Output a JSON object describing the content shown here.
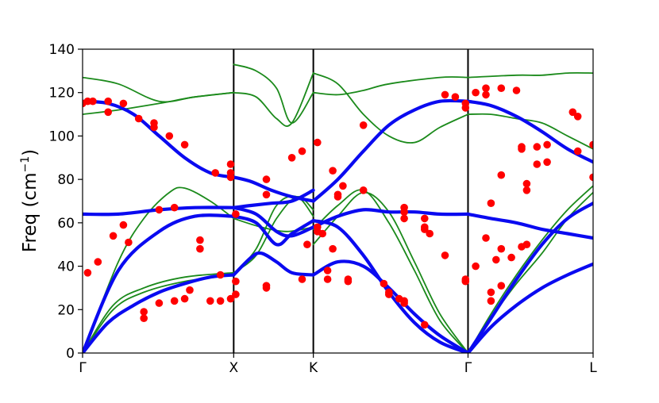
{
  "chart_data": {
    "type": "line",
    "title": "",
    "xlabel": "",
    "ylabel": "Freq (cm",
    "ylabel_sup": "−1",
    "ylabel_close": ")",
    "ylim": [
      0,
      140
    ],
    "yticks": [
      0,
      20,
      40,
      60,
      80,
      100,
      120,
      140
    ],
    "xlim": [
      0,
      1
    ],
    "high_symmetry_points": [
      {
        "label": "Γ",
        "x": 0.0
      },
      {
        "label": "X",
        "x": 0.296
      },
      {
        "label": "K",
        "x": 0.452
      },
      {
        "label": "Γ",
        "x": 0.755
      },
      {
        "label": "L",
        "x": 1.0
      }
    ],
    "grid": false,
    "legend": "none",
    "colors": {
      "green": "#1b8a1b",
      "blue": "#0a0af0",
      "points": "#ff0000"
    },
    "series": [
      {
        "group": "green",
        "x": [
          0.0,
          0.06,
          0.12,
          0.2,
          0.296
        ],
        "values": [
          0,
          20,
          28,
          33,
          36
        ]
      },
      {
        "group": "green",
        "x": [
          0.0,
          0.06,
          0.12,
          0.2,
          0.296
        ],
        "values": [
          0,
          22,
          30,
          35,
          37
        ]
      },
      {
        "group": "green",
        "x": [
          0.0,
          0.07,
          0.12,
          0.17,
          0.2,
          0.25,
          0.296
        ],
        "values": [
          0,
          42,
          62,
          74,
          76,
          70,
          62
        ]
      },
      {
        "group": "green",
        "x": [
          0.296,
          0.35,
          0.4,
          0.452
        ],
        "values": [
          62,
          58,
          56,
          58
        ]
      },
      {
        "group": "green",
        "x": [
          0.296,
          0.34,
          0.38,
          0.42,
          0.452
        ],
        "values": [
          37,
          45,
          62,
          72,
          66
        ]
      },
      {
        "group": "green",
        "x": [
          0.296,
          0.34,
          0.38,
          0.42,
          0.452
        ],
        "values": [
          36,
          48,
          68,
          72,
          63
        ]
      },
      {
        "group": "green",
        "x": [
          0.452,
          0.5,
          0.55,
          0.6,
          0.65,
          0.7,
          0.755
        ],
        "values": [
          50,
          63,
          74,
          65,
          42,
          18,
          0
        ]
      },
      {
        "group": "green",
        "x": [
          0.452,
          0.5,
          0.55,
          0.6,
          0.65,
          0.7,
          0.755
        ],
        "values": [
          57,
          68,
          75,
          60,
          38,
          15,
          0
        ]
      },
      {
        "group": "green",
        "x": [
          0.755,
          0.8,
          0.85,
          0.9,
          0.95,
          1.0
        ],
        "values": [
          0,
          18,
          36,
          52,
          66,
          77
        ]
      },
      {
        "group": "green",
        "x": [
          0.755,
          0.8,
          0.85,
          0.9,
          0.95,
          1.0
        ],
        "values": [
          0,
          16,
          32,
          46,
          62,
          74
        ]
      },
      {
        "group": "green",
        "x": [
          0.0,
          0.07,
          0.15,
          0.22,
          0.296
        ],
        "values": [
          127,
          124,
          116,
          118,
          120
        ]
      },
      {
        "group": "green",
        "x": [
          0.0,
          0.07,
          0.15,
          0.22,
          0.296
        ],
        "values": [
          110,
          112,
          115,
          118,
          120
        ]
      },
      {
        "group": "green",
        "x": [
          0.296,
          0.34,
          0.38,
          0.41,
          0.452
        ],
        "values": [
          133,
          130,
          122,
          106,
          120
        ]
      },
      {
        "group": "green",
        "x": [
          0.296,
          0.34,
          0.38,
          0.41,
          0.452
        ],
        "values": [
          120,
          118,
          108,
          106,
          129
        ]
      },
      {
        "group": "green",
        "x": [
          0.452,
          0.5,
          0.55,
          0.6,
          0.7,
          0.755
        ],
        "values": [
          120,
          119,
          121,
          124,
          127,
          127
        ]
      },
      {
        "group": "green",
        "x": [
          0.452,
          0.5,
          0.55,
          0.6,
          0.65,
          0.7,
          0.755
        ],
        "values": [
          129,
          124,
          110,
          100,
          97,
          104,
          110
        ]
      },
      {
        "group": "green",
        "x": [
          0.755,
          0.85,
          0.9,
          0.95,
          1.0
        ],
        "values": [
          127,
          128,
          128,
          129,
          129
        ]
      },
      {
        "group": "green",
        "x": [
          0.755,
          0.8,
          0.85,
          0.9,
          0.95,
          1.0
        ],
        "values": [
          110,
          110,
          108,
          106,
          100,
          94
        ]
      },
      {
        "group": "blue",
        "x": [
          0.0,
          0.05,
          0.1,
          0.15,
          0.2,
          0.25,
          0.296
        ],
        "values": [
          0,
          14,
          22,
          28,
          32,
          35,
          36
        ]
      },
      {
        "group": "blue",
        "x": [
          0.296,
          0.33,
          0.35,
          0.38,
          0.41,
          0.452
        ],
        "values": [
          36,
          44,
          46,
          42,
          37,
          36
        ]
      },
      {
        "group": "blue",
        "x": [
          0.452,
          0.5,
          0.55,
          0.6,
          0.65,
          0.7,
          0.755
        ],
        "values": [
          36,
          42,
          40,
          30,
          18,
          8,
          0
        ]
      },
      {
        "group": "blue",
        "x": [
          0.755,
          0.8,
          0.85,
          0.9,
          0.95,
          1.0
        ],
        "values": [
          0,
          12,
          22,
          30,
          36,
          41
        ]
      },
      {
        "group": "blue",
        "x": [
          0.0,
          0.07,
          0.15,
          0.22,
          0.296
        ],
        "values": [
          0,
          38,
          56,
          63,
          63
        ]
      },
      {
        "group": "blue",
        "x": [
          0.296,
          0.34,
          0.38,
          0.41,
          0.452
        ],
        "values": [
          63,
          60,
          50,
          55,
          61
        ]
      },
      {
        "group": "blue",
        "x": [
          0.452,
          0.5,
          0.55,
          0.6,
          0.65,
          0.7,
          0.755
        ],
        "values": [
          61,
          58,
          45,
          28,
          14,
          5,
          0
        ]
      },
      {
        "group": "blue",
        "x": [
          0.755,
          0.8,
          0.85,
          0.9,
          0.95,
          1.0
        ],
        "values": [
          0,
          16,
          34,
          50,
          62,
          69
        ]
      },
      {
        "group": "blue",
        "x": [
          0.0,
          0.07,
          0.15,
          0.22,
          0.296
        ],
        "values": [
          64,
          64,
          66,
          67,
          67
        ]
      },
      {
        "group": "blue",
        "x": [
          0.296,
          0.34,
          0.38,
          0.41,
          0.452
        ],
        "values": [
          67,
          64,
          56,
          54,
          58
        ]
      },
      {
        "group": "blue",
        "x": [
          0.452,
          0.5,
          0.55,
          0.6,
          0.65,
          0.7,
          0.755
        ],
        "values": [
          58,
          63,
          66,
          65,
          65,
          64,
          64
        ]
      },
      {
        "group": "blue",
        "x": [
          0.755,
          0.8,
          0.85,
          0.9,
          0.95,
          1.0
        ],
        "values": [
          64,
          62,
          60,
          57,
          55,
          53
        ]
      },
      {
        "group": "blue",
        "x": [
          0.296,
          0.33,
          0.37,
          0.41,
          0.452
        ],
        "values": [
          67,
          68,
          69,
          70,
          75
        ]
      },
      {
        "group": "blue",
        "x": [
          0.0,
          0.05,
          0.1,
          0.15,
          0.2,
          0.25,
          0.296
        ],
        "values": [
          116,
          115,
          110,
          100,
          90,
          83,
          81
        ]
      },
      {
        "group": "blue",
        "x": [
          0.296,
          0.33,
          0.37,
          0.41,
          0.452
        ],
        "values": [
          81,
          79,
          75,
          72,
          70
        ]
      },
      {
        "group": "blue",
        "x": [
          0.452,
          0.5,
          0.55,
          0.6,
          0.65,
          0.7,
          0.755
        ],
        "values": [
          70,
          80,
          93,
          105,
          112,
          116,
          116
        ]
      },
      {
        "group": "blue",
        "x": [
          0.755,
          0.8,
          0.85,
          0.9,
          0.95,
          1.0
        ],
        "values": [
          116,
          114,
          109,
          102,
          94,
          88
        ]
      }
    ],
    "points": [
      [
        0.0,
        115
      ],
      [
        0.01,
        116
      ],
      [
        0.02,
        116
      ],
      [
        0.05,
        116
      ],
      [
        0.08,
        115
      ],
      [
        0.05,
        111
      ],
      [
        0.11,
        108
      ],
      [
        0.14,
        104
      ],
      [
        0.14,
        106
      ],
      [
        0.17,
        100
      ],
      [
        0.2,
        96
      ],
      [
        0.26,
        83
      ],
      [
        0.29,
        83
      ],
      [
        0.29,
        81
      ],
      [
        0.29,
        87
      ],
      [
        0.36,
        80
      ],
      [
        0.36,
        73
      ],
      [
        0.41,
        90
      ],
      [
        0.43,
        93
      ],
      [
        0.46,
        97
      ],
      [
        0.49,
        84
      ],
      [
        0.51,
        77
      ],
      [
        0.55,
        105
      ],
      [
        0.5,
        73
      ],
      [
        0.5,
        72
      ],
      [
        0.55,
        75
      ],
      [
        0.63,
        67
      ],
      [
        0.63,
        65
      ],
      [
        0.63,
        62
      ],
      [
        0.67,
        62
      ],
      [
        0.67,
        58
      ],
      [
        0.68,
        55
      ],
      [
        0.67,
        57
      ],
      [
        0.71,
        45
      ],
      [
        0.71,
        119
      ],
      [
        0.73,
        118
      ],
      [
        0.75,
        115
      ],
      [
        0.75,
        113
      ],
      [
        0.77,
        120
      ],
      [
        0.79,
        122
      ],
      [
        0.79,
        119
      ],
      [
        0.82,
        122
      ],
      [
        0.85,
        121
      ],
      [
        0.86,
        94
      ],
      [
        0.86,
        95
      ],
      [
        0.89,
        95
      ],
      [
        0.91,
        96
      ],
      [
        0.89,
        87
      ],
      [
        0.91,
        88
      ],
      [
        0.96,
        111
      ],
      [
        0.97,
        109
      ],
      [
        0.97,
        93
      ],
      [
        1.0,
        96
      ],
      [
        1.0,
        81
      ],
      [
        0.82,
        82
      ],
      [
        0.8,
        69
      ],
      [
        0.87,
        75
      ],
      [
        0.87,
        78
      ],
      [
        0.79,
        53
      ],
      [
        0.77,
        40
      ],
      [
        0.81,
        43
      ],
      [
        0.82,
        48
      ],
      [
        0.8,
        28
      ],
      [
        0.8,
        24
      ],
      [
        0.82,
        31
      ],
      [
        0.84,
        44
      ],
      [
        0.86,
        49
      ],
      [
        0.87,
        50
      ],
      [
        0.75,
        34
      ],
      [
        0.75,
        33
      ],
      [
        0.01,
        37
      ],
      [
        0.03,
        42
      ],
      [
        0.06,
        54
      ],
      [
        0.08,
        59
      ],
      [
        0.09,
        51
      ],
      [
        0.12,
        19
      ],
      [
        0.12,
        16
      ],
      [
        0.15,
        23
      ],
      [
        0.18,
        24
      ],
      [
        0.2,
        25
      ],
      [
        0.21,
        29
      ],
      [
        0.25,
        24
      ],
      [
        0.27,
        24
      ],
      [
        0.29,
        25
      ],
      [
        0.3,
        27
      ],
      [
        0.27,
        36
      ],
      [
        0.3,
        33
      ],
      [
        0.23,
        52
      ],
      [
        0.23,
        48
      ],
      [
        0.15,
        66
      ],
      [
        0.18,
        67
      ],
      [
        0.3,
        64
      ],
      [
        0.36,
        31
      ],
      [
        0.36,
        30
      ],
      [
        0.43,
        34
      ],
      [
        0.44,
        50
      ],
      [
        0.46,
        56
      ],
      [
        0.47,
        55
      ],
      [
        0.48,
        38
      ],
      [
        0.48,
        34
      ],
      [
        0.46,
        58
      ],
      [
        0.49,
        48
      ],
      [
        0.52,
        34
      ],
      [
        0.52,
        33
      ],
      [
        0.59,
        32
      ],
      [
        0.6,
        27
      ],
      [
        0.6,
        28
      ],
      [
        0.62,
        25
      ],
      [
        0.63,
        24
      ],
      [
        0.63,
        23
      ],
      [
        0.67,
        13
      ]
    ]
  },
  "axes": {
    "y_tick_labels": [
      "0",
      "20",
      "40",
      "60",
      "80",
      "100",
      "120",
      "140"
    ]
  }
}
